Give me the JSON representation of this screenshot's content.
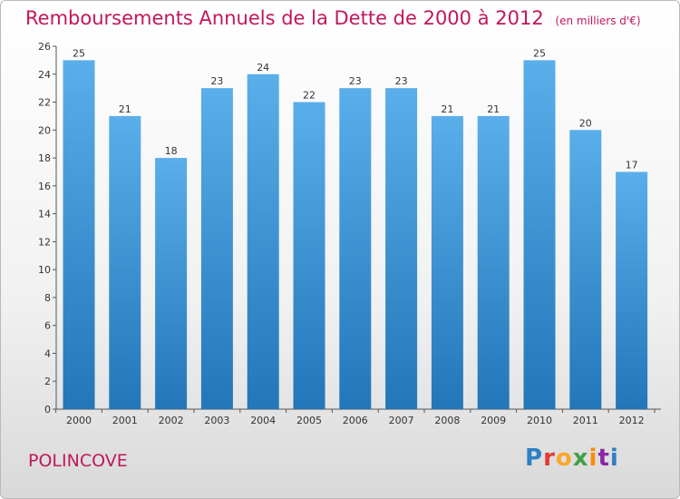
{
  "header": {
    "title": "Remboursements Annuels de la Dette de 2000 à 2012",
    "unit": "(en milliers d'€)"
  },
  "footer": {
    "commune": "POLINCOVE",
    "brand_letters": [
      "P",
      "r",
      "o",
      "x",
      "i",
      "t",
      "i"
    ],
    "brand_colors": [
      "#2e7fc5",
      "#e53935",
      "#f9a825",
      "#43a047",
      "#fb8c00",
      "#8e24aa",
      "#2e7fc5"
    ]
  },
  "colors": {
    "bar_top": "#5aaeea",
    "bar_bottom": "#2376b8",
    "title": "#c2185b"
  },
  "chart_data": {
    "type": "bar",
    "categories": [
      "2000",
      "2001",
      "2002",
      "2003",
      "2004",
      "2005",
      "2006",
      "2007",
      "2008",
      "2009",
      "2010",
      "2011",
      "2012"
    ],
    "values": [
      25,
      21,
      18,
      23,
      24,
      22,
      23,
      23,
      21,
      21,
      25,
      20,
      17
    ],
    "ylim": [
      0,
      26
    ],
    "yticks": [
      0,
      2,
      4,
      6,
      8,
      10,
      12,
      14,
      16,
      18,
      20,
      22,
      24,
      26
    ],
    "grid": false,
    "data_labels": true
  }
}
